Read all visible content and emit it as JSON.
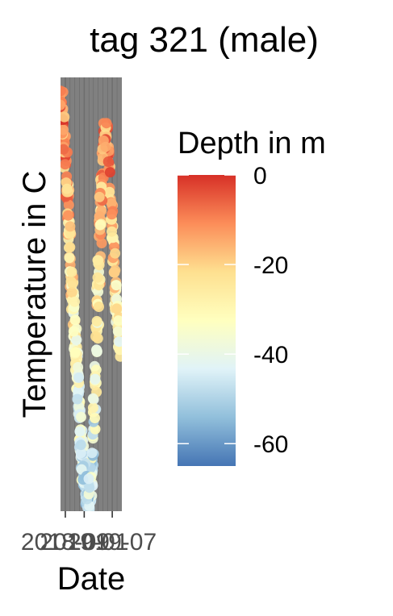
{
  "chart_data": {
    "type": "scatter",
    "title": "tag 321 (male)",
    "xlabel": "Date",
    "ylabel": "Temperature in C",
    "x_tick_labels_overlapping": [
      "2018-09",
      "2019-01",
      "2019-07"
    ],
    "x_tick_labels": [
      "2018-09",
      "2019-01",
      "2019-07"
    ],
    "x_ticks": [
      "2018-09-01",
      "2019-01-01",
      "2019-07-01"
    ],
    "x_range": [
      "2018-08-01",
      "2019-09-01"
    ],
    "y_range": [
      0,
      1
    ],
    "grid": true,
    "background": "#808080",
    "gridline_color": "#6e6e6e",
    "color_scale": {
      "title": "Depth in m",
      "type": "continuous",
      "palette": "RdYlBu",
      "ticks": [
        0,
        -20,
        -40,
        -60
      ],
      "range": [
        -65,
        0
      ],
      "colors": [
        "#4575b4",
        "#91bfdb",
        "#e0f3f8",
        "#ffffbf",
        "#fee090",
        "#fc8d59",
        "#d73027"
      ]
    },
    "trend": [
      {
        "date": "2018-08-05",
        "t": 0.95
      },
      {
        "date": "2018-08-20",
        "t": 0.88
      },
      {
        "date": "2018-09-05",
        "t": 0.8
      },
      {
        "date": "2018-09-20",
        "t": 0.7
      },
      {
        "date": "2018-10-05",
        "t": 0.58
      },
      {
        "date": "2018-10-20",
        "t": 0.48
      },
      {
        "date": "2018-11-05",
        "t": 0.39
      },
      {
        "date": "2018-11-20",
        "t": 0.3
      },
      {
        "date": "2018-12-05",
        "t": 0.21
      },
      {
        "date": "2018-12-20",
        "t": 0.13
      },
      {
        "date": "2019-01-05",
        "t": 0.06
      },
      {
        "date": "2019-01-20",
        "t": 0.03
      },
      {
        "date": "2019-02-05",
        "t": 0.04
      },
      {
        "date": "2019-02-20",
        "t": 0.1
      },
      {
        "date": "2019-03-05",
        "t": 0.2
      },
      {
        "date": "2019-03-20",
        "t": 0.36
      },
      {
        "date": "2019-04-05",
        "t": 0.54
      },
      {
        "date": "2019-04-20",
        "t": 0.72
      },
      {
        "date": "2019-05-05",
        "t": 0.84
      },
      {
        "date": "2019-05-20",
        "t": 0.88
      },
      {
        "date": "2019-06-05",
        "t": 0.82
      },
      {
        "date": "2019-06-20",
        "t": 0.72
      },
      {
        "date": "2019-07-05",
        "t": 0.62
      },
      {
        "date": "2019-07-20",
        "t": 0.52
      },
      {
        "date": "2019-08-05",
        "t": 0.44
      },
      {
        "date": "2019-08-20",
        "t": 0.38
      }
    ]
  }
}
